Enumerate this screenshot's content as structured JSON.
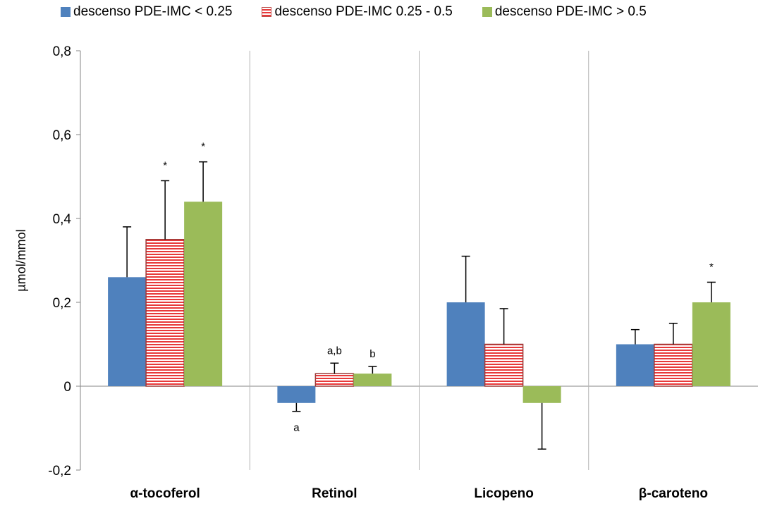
{
  "chart_data": {
    "type": "bar",
    "title": "",
    "xlabel": "",
    "ylabel": "µmol/mmol",
    "ylim": [
      -0.2,
      0.8
    ],
    "yticks": [
      -0.2,
      0,
      0.2,
      0.4,
      0.6,
      0.8
    ],
    "ytick_labels": [
      "-0,2",
      "0",
      "0,2",
      "0,4",
      "0,6",
      "0,8"
    ],
    "categories": [
      "α-tocoferol",
      "Retinol",
      "Licopeno",
      "β-caroteno"
    ],
    "legend_position": "top",
    "grid": false,
    "series": [
      {
        "name": "descenso PDE-IMC < 0.25",
        "color": "#4f81bd",
        "pattern": "solid",
        "values": [
          0.26,
          -0.04,
          0.2,
          0.1
        ],
        "errors": [
          0.12,
          0.02,
          0.11,
          0.035
        ],
        "annotations": [
          "",
          "a",
          "",
          ""
        ]
      },
      {
        "name": "descenso PDE-IMC 0.25 - 0.5",
        "color": "#c0504d",
        "pattern": "horizontal-stripes",
        "values": [
          0.35,
          0.03,
          0.1,
          0.1
        ],
        "errors": [
          0.14,
          0.025,
          0.085,
          0.05
        ],
        "annotations": [
          "*",
          "a,b",
          "",
          ""
        ]
      },
      {
        "name": "descenso PDE-IMC > 0.5",
        "color": "#9bbb59",
        "pattern": "solid",
        "values": [
          0.44,
          0.03,
          -0.04,
          0.2
        ],
        "errors": [
          0.095,
          0.017,
          0.11,
          0.048
        ],
        "annotations": [
          "*",
          "b",
          "",
          "*"
        ]
      }
    ]
  }
}
